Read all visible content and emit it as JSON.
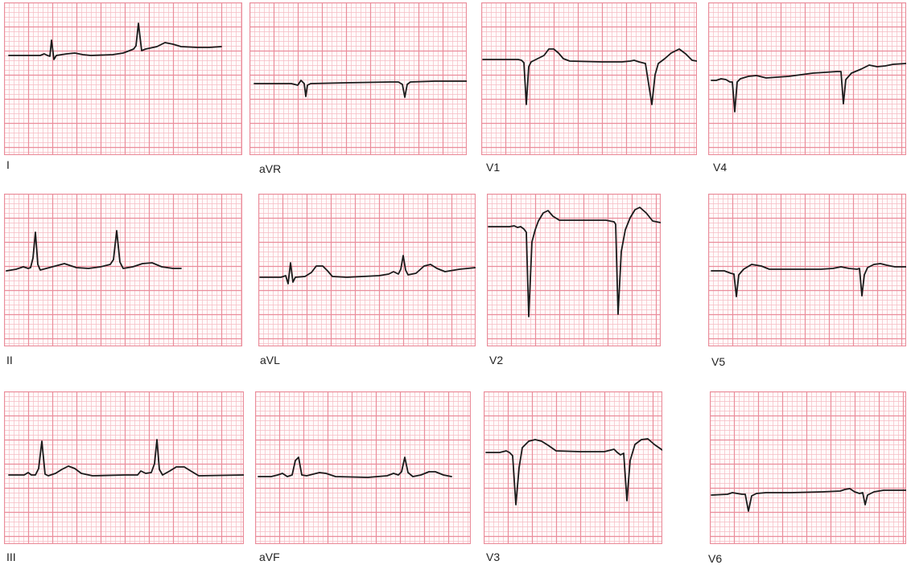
{
  "colors": {
    "paper": "#fffafa",
    "grid_minor": "#f6bcc4",
    "grid_major": "#ea8d9b",
    "trace": "#1a1a1a",
    "label": "#222222"
  },
  "leads": [
    {
      "label": "I"
    },
    {
      "label": "aVR"
    },
    {
      "label": "V1"
    },
    {
      "label": "V4"
    },
    {
      "label": "II"
    },
    {
      "label": "aVL"
    },
    {
      "label": "V2"
    },
    {
      "label": "V5"
    },
    {
      "label": "III"
    },
    {
      "label": "aVF"
    },
    {
      "label": "V3"
    },
    {
      "label": "V6"
    }
  ]
}
